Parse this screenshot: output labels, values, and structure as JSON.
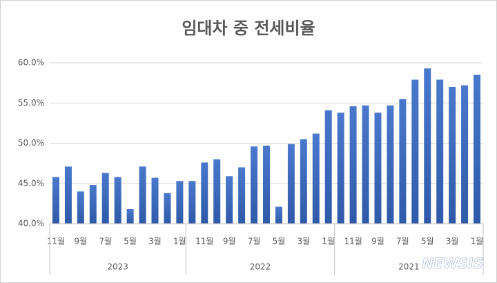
{
  "chart_data": {
    "type": "bar",
    "title": "임대차 중 전세비율",
    "categories": [
      "11월",
      null,
      "9월",
      null,
      "7월",
      null,
      "5월",
      null,
      "3월",
      null,
      "1월",
      null,
      "11월",
      null,
      "9월",
      null,
      "7월",
      null,
      "5월",
      null,
      "3월",
      null,
      "1월",
      null,
      "11월",
      null,
      "9월",
      null,
      "7월",
      null,
      "5월",
      null,
      "3월",
      null,
      "1월"
    ],
    "groups": [
      {
        "name": "2023",
        "size": 11
      },
      {
        "name": "2022",
        "size": 12
      },
      {
        "name": "2021",
        "size": 12
      }
    ],
    "values": [
      45.8,
      47.1,
      44.0,
      44.8,
      46.3,
      45.8,
      41.8,
      47.1,
      45.7,
      43.8,
      45.3,
      45.3,
      47.6,
      48.0,
      45.9,
      47.0,
      49.6,
      49.7,
      42.1,
      49.9,
      50.5,
      51.2,
      54.1,
      53.8,
      54.6,
      54.7,
      53.8,
      54.7,
      55.5,
      57.9,
      59.3,
      57.9,
      57.0,
      57.2,
      58.5
    ],
    "color": "#4472c4",
    "ylim": [
      40,
      60
    ],
    "yticks": [
      {
        "value": 40,
        "label": "40.0%"
      },
      {
        "value": 45,
        "label": "45.0%"
      },
      {
        "value": 50,
        "label": "50.0%"
      },
      {
        "value": 55,
        "label": "55.0%"
      },
      {
        "value": 60,
        "label": "60.0%"
      }
    ],
    "grid": true,
    "watermark": "NEWSIS"
  }
}
